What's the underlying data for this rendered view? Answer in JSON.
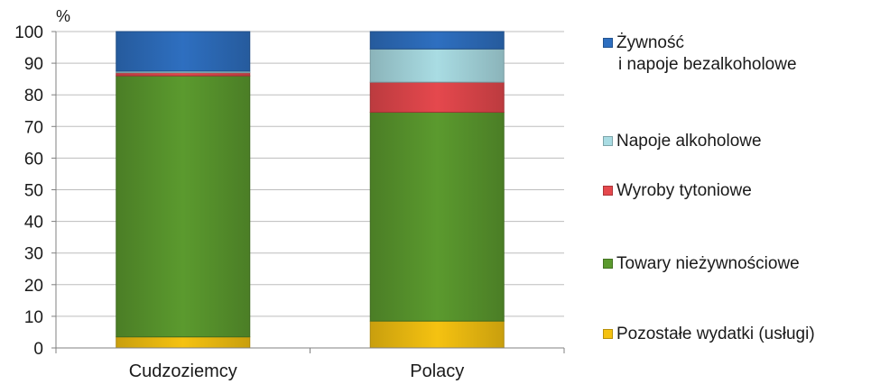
{
  "chart_data": {
    "type": "bar",
    "stacked": true,
    "unit_label": "%",
    "categories": [
      "Cudzoziemcy",
      "Polacy"
    ],
    "ylim": [
      0,
      100
    ],
    "yticks": [
      "0",
      "10",
      "20",
      "30",
      "40",
      "50",
      "60",
      "70",
      "80",
      "90",
      "100"
    ],
    "grid": true,
    "legend_position": "right",
    "series": [
      {
        "name": "Pozostałe wydatki (usługi)",
        "values": [
          3.5,
          8.5
        ],
        "color": "#f5c211"
      },
      {
        "name": "Towary nieżywnościowe",
        "values": [
          82.5,
          66.0
        ],
        "color": "#5b9a2e"
      },
      {
        "name": "Wyroby tytoniowe",
        "values": [
          1.0,
          9.5
        ],
        "color": "#e5484d"
      },
      {
        "name": "Napoje alkoholowe",
        "values": [
          0.5,
          10.5
        ],
        "color": "#a9dce3"
      },
      {
        "name": "Żywność i napoje bezalkoholowe",
        "values": [
          12.5,
          5.5
        ],
        "color": "#2e6fc0"
      }
    ]
  },
  "legend": {
    "items": [
      {
        "lines": [
          "Żywność",
          "i napoje bezalkoholowe"
        ],
        "color": "#2e6fc0"
      },
      {
        "lines": [
          "Napoje alkoholowe"
        ],
        "color": "#a9dce3"
      },
      {
        "lines": [
          "Wyroby tytoniowe"
        ],
        "color": "#e5484d"
      },
      {
        "lines": [
          "Towary nieżywnościowe"
        ],
        "color": "#5b9a2e"
      },
      {
        "lines": [
          "Pozostałe wydatki (usługi)"
        ],
        "color": "#f5c211"
      }
    ]
  }
}
